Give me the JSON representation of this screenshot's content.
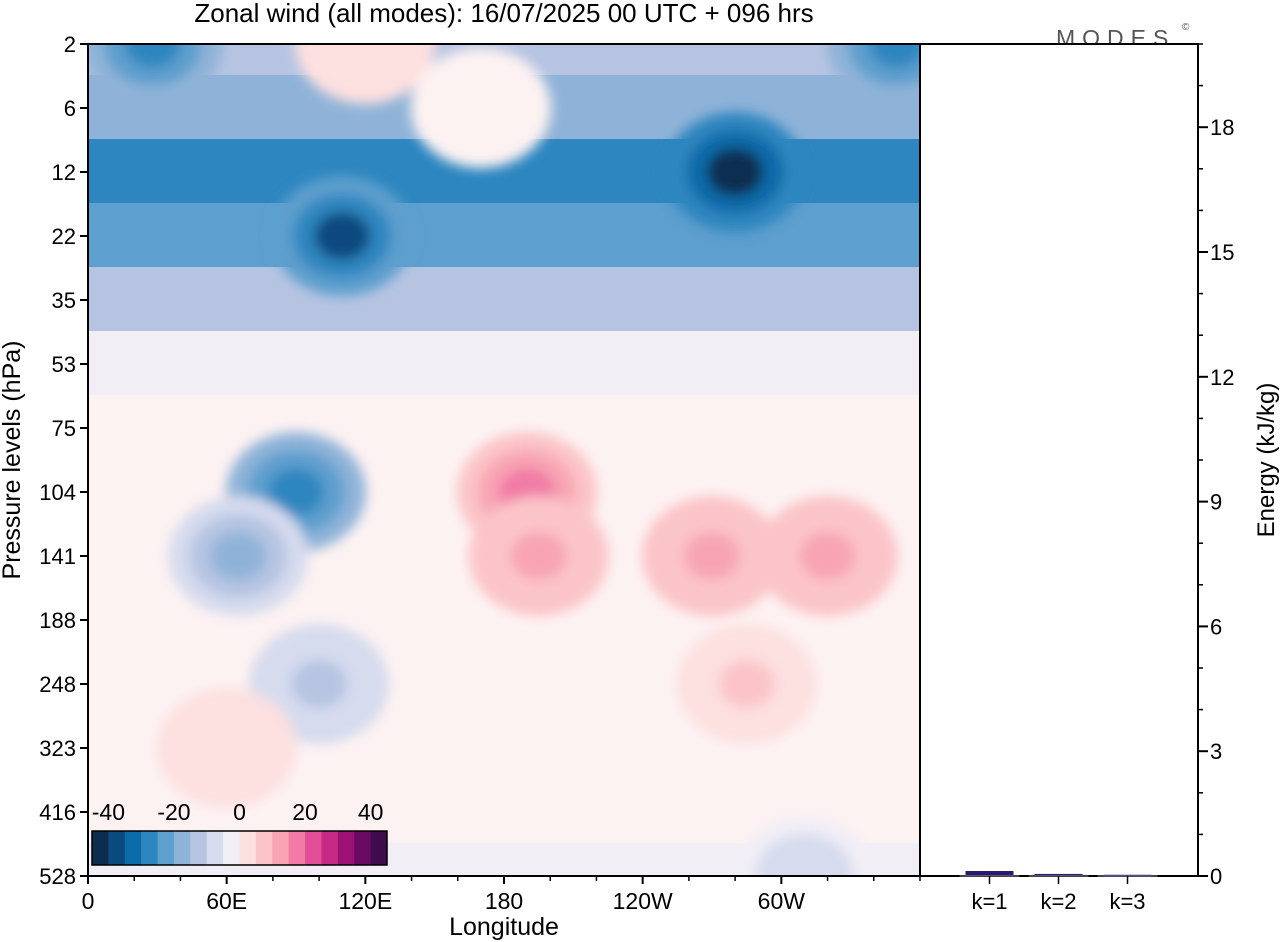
{
  "title": "Zonal wind (all modes):  16/07/2025  00 UTC  + 096 hrs",
  "logo": "MODES",
  "logo_mark": "©",
  "colors": {
    "scale": [
      "#0d2d4f",
      "#0b4a7e",
      "#0b6aa8",
      "#2d86c0",
      "#5d9fce",
      "#8fb3d8",
      "#b6c4e2",
      "#d6dbee",
      "#f1eef6",
      "#fdf2f2",
      "#fde0e0",
      "#fbc4c8",
      "#f8a4b4",
      "#f17aa6",
      "#e44d97",
      "#c72a85",
      "#9c1174",
      "#6a0a61",
      "#3f0a4e"
    ],
    "ramp": [
      "#0d2d4f",
      "#0b4a7e",
      "#0b6aa8",
      "#2d86c0",
      "#5d9fce",
      "#8fb3d8",
      "#b6c4e2",
      "#d6dbee",
      "#f1eef6",
      "#fde0e0",
      "#fbc4c8",
      "#f8a4b4",
      "#f17aa6",
      "#e44d97",
      "#c72a85",
      "#9c1174",
      "#6a0a61",
      "#3f0a4e"
    ],
    "bar": "#2b1a6e"
  },
  "chart_data": [
    {
      "type": "heatmap",
      "title": "Zonal wind (all modes):  16/07/2025  00 UTC  + 096 hrs",
      "xlabel": "Longitude",
      "ylabel": "Pressure levels (hPa)",
      "x_ticks": [
        "0",
        "60E",
        "120E",
        "180",
        "120W",
        "60W"
      ],
      "x_tick_values": [
        0,
        60,
        120,
        180,
        240,
        300
      ],
      "xlim": [
        0,
        360
      ],
      "y_ticks": [
        "2",
        "6",
        "12",
        "22",
        "35",
        "53",
        "75",
        "104",
        "141",
        "188",
        "248",
        "323",
        "416",
        "528"
      ],
      "colorbar": {
        "labels": [
          "-40",
          "-20",
          "0",
          "20",
          "40"
        ],
        "label_values": [
          -40,
          -20,
          0,
          20,
          40
        ],
        "range": [
          -45,
          45
        ]
      },
      "field": {
        "bands": [
          {
            "level": "2",
            "base": -12
          },
          {
            "level": "6",
            "base": -20
          },
          {
            "level": "12",
            "base": -28
          },
          {
            "level": "22",
            "base": -24
          },
          {
            "level": "35",
            "base": -14
          },
          {
            "level": "53",
            "base": -4
          },
          {
            "level": "75",
            "base": 0
          },
          {
            "level": "104",
            "base": 0
          },
          {
            "level": "141",
            "base": 0
          },
          {
            "level": "188",
            "base": 0
          },
          {
            "level": "248",
            "base": 0
          },
          {
            "level": "323",
            "base": 0
          },
          {
            "level": "416",
            "base": -2
          },
          {
            "level": "528",
            "base": -3
          }
        ],
        "features": [
          {
            "lon": 28,
            "level": "2",
            "value": -28
          },
          {
            "lon": 120,
            "level": "2",
            "value": 4
          },
          {
            "lon": 170,
            "level": "6",
            "value": 2
          },
          {
            "lon": 280,
            "level": "12",
            "value": -42
          },
          {
            "lon": 350,
            "level": "2",
            "value": -30
          },
          {
            "lon": 110,
            "level": "22",
            "value": -36
          },
          {
            "lon": 90,
            "level": "104",
            "value": -30
          },
          {
            "lon": 65,
            "level": "141",
            "value": -18
          },
          {
            "lon": 190,
            "level": "104",
            "value": 18
          },
          {
            "lon": 195,
            "level": "141",
            "value": 14
          },
          {
            "lon": 270,
            "level": "141",
            "value": 14
          },
          {
            "lon": 320,
            "level": "141",
            "value": 14
          },
          {
            "lon": 285,
            "level": "248",
            "value": 8
          },
          {
            "lon": 100,
            "level": "248",
            "value": -12
          },
          {
            "lon": 60,
            "level": "323",
            "value": 4
          },
          {
            "lon": 310,
            "level": "528",
            "value": -10
          }
        ]
      }
    },
    {
      "type": "bar",
      "ylabel": "Energy (kJ/kg)",
      "categories": [
        "k=1",
        "k=2",
        "k=3"
      ],
      "values": [
        0.12,
        0.05,
        0.03
      ],
      "ylim": [
        0,
        20
      ],
      "y_ticks": [
        "0",
        "3",
        "6",
        "9",
        "12",
        "15",
        "18"
      ],
      "y_tick_values": [
        0,
        3,
        6,
        9,
        12,
        15,
        18
      ]
    }
  ]
}
